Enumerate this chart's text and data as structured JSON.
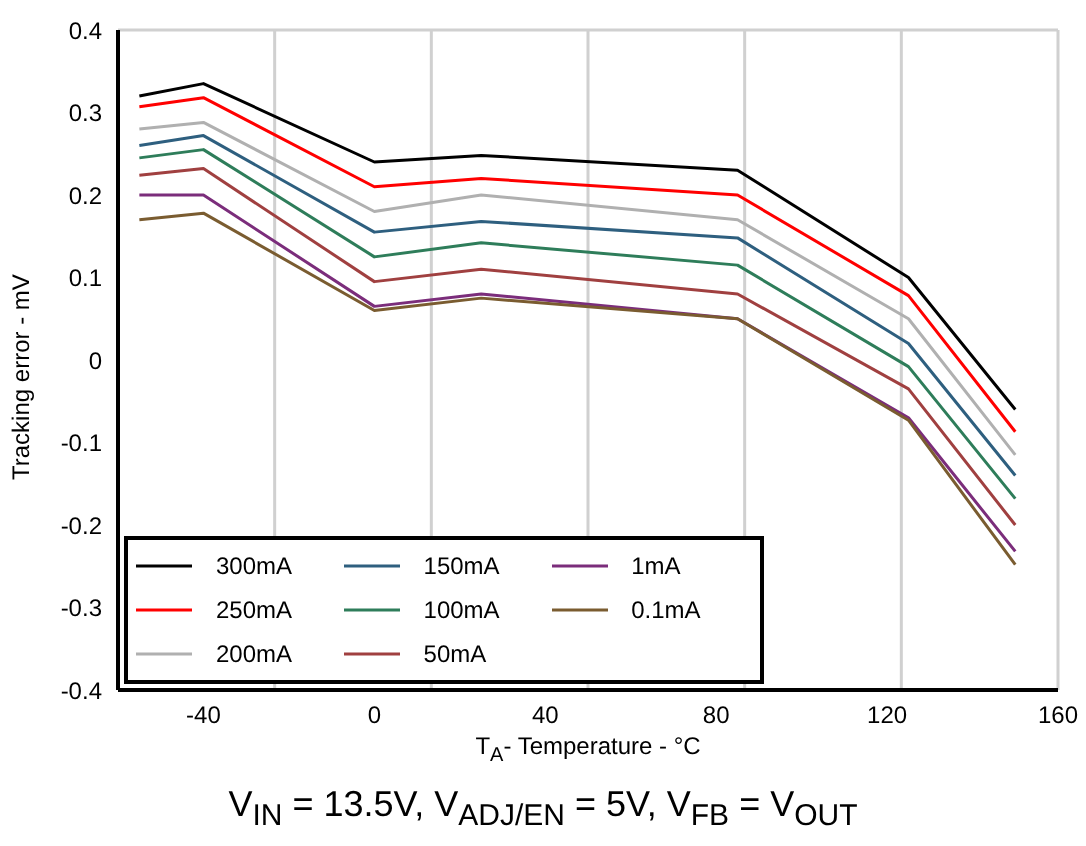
{
  "chart_data": {
    "type": "line",
    "xlabel": "T$_{A}$- Temperature - °C",
    "ylabel": "Tracking error - mV",
    "annotations": [
      "V$_{IN}$ = 13.5V, V$_{ADJ/EN}$ = 5V, V$_{FB}$ = V$_{OUT}$"
    ],
    "x": [
      -55,
      -40,
      0,
      25,
      85,
      125,
      150
    ],
    "xlim": [
      -60,
      160
    ],
    "xticks": [
      -40,
      0,
      40,
      80,
      120,
      160
    ],
    "ylim": [
      -0.4,
      0.4
    ],
    "yticks": [
      -0.4,
      -0.3,
      -0.2,
      -0.1,
      0,
      0.1,
      0.2,
      0.3,
      0.4
    ],
    "grid": true,
    "legend": "bottom left",
    "marker": "none",
    "line_style": "solid",
    "series": [
      {
        "name": "300mA",
        "color": "#000000",
        "values": [
          0.32,
          0.335,
          0.24,
          0.248,
          0.23,
          0.1,
          -0.06
        ]
      },
      {
        "name": "250mA",
        "color": "#ff0000",
        "values": [
          0.307,
          0.318,
          0.21,
          0.22,
          0.2,
          0.078,
          -0.087
        ]
      },
      {
        "name": "200mA",
        "color": "#b0b0b0",
        "values": [
          0.28,
          0.288,
          0.18,
          0.2,
          0.17,
          0.05,
          -0.115
        ]
      },
      {
        "name": "150mA",
        "color": "#2e5f7f",
        "values": [
          0.26,
          0.272,
          0.155,
          0.168,
          0.148,
          0.02,
          -0.14
        ]
      },
      {
        "name": "100mA",
        "color": "#2e7d5a",
        "values": [
          0.245,
          0.255,
          0.125,
          0.142,
          0.115,
          -0.008,
          -0.168
        ]
      },
      {
        "name": "50mA",
        "color": "#a04040",
        "values": [
          0.224,
          0.232,
          0.095,
          0.11,
          0.08,
          -0.035,
          -0.2
        ]
      },
      {
        "name": "1mA",
        "color": "#7b2d7b",
        "values": [
          0.2,
          0.2,
          0.065,
          0.08,
          0.05,
          -0.07,
          -0.232
        ]
      },
      {
        "name": "0.1mA",
        "color": "#7a5c30",
        "values": [
          0.17,
          0.178,
          0.06,
          0.075,
          0.05,
          -0.073,
          -0.248
        ]
      }
    ]
  }
}
